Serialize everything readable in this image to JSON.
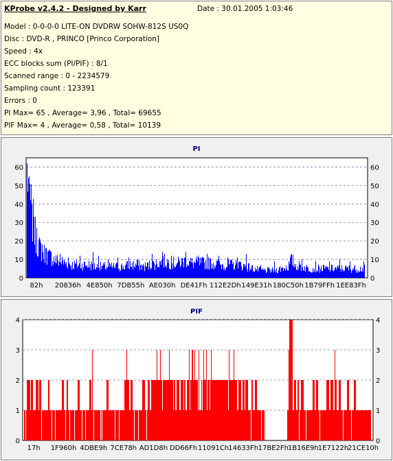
{
  "info": {
    "title": "KProbe v2.4.2 - Designed by Karr",
    "date": "Date : 30.01.2005 1:03:46",
    "lines": [
      "Model : 0-0-0-0 LITE-ON DVDRW SOHW-812S  US0Q",
      "Disc : DVD-R , PRINCO [Princo Corporation]",
      "Speed : 4x",
      "ECC blocks sum (PI/PIF) : 8/1",
      "Scanned range : 0 - 2234579",
      "Sampling count : 123391",
      "Errors : 0",
      "PI Max= 65 , Average= 3,96 , Total= 69655",
      "PIF Max= 4 , Average= 0,58 , Total= 10139"
    ]
  },
  "chart_data": [
    {
      "type": "area",
      "title": "PI",
      "color": "#0000ff",
      "ylim": [
        0,
        65
      ],
      "yticks": [
        0,
        10,
        20,
        30,
        40,
        50,
        60
      ],
      "xticklabels": [
        "82h",
        "20836h",
        "4E850h",
        "7DB55h",
        "AE030h",
        "DE41Fh",
        "112E2Dh",
        "149E31h",
        "180C50h",
        "1B79FFh",
        "1EE83Fh"
      ],
      "grid": true,
      "profile": [
        [
          0,
          55
        ],
        [
          1,
          57
        ],
        [
          2,
          52
        ],
        [
          4,
          44
        ],
        [
          6,
          38
        ],
        [
          8,
          32
        ],
        [
          10,
          27
        ],
        [
          12,
          23
        ],
        [
          15,
          20
        ],
        [
          18,
          17
        ],
        [
          22,
          14
        ],
        [
          26,
          13
        ],
        [
          30,
          12
        ],
        [
          35,
          11
        ],
        [
          40,
          10
        ],
        [
          45,
          9
        ],
        [
          50,
          9
        ],
        [
          55,
          8
        ],
        [
          60,
          8
        ],
        [
          65,
          7
        ],
        [
          70,
          7
        ],
        [
          80,
          7
        ],
        [
          90,
          7
        ],
        [
          100,
          6
        ],
        [
          110,
          6
        ],
        [
          120,
          6
        ],
        [
          130,
          6
        ],
        [
          140,
          6
        ],
        [
          150,
          7
        ],
        [
          160,
          7
        ],
        [
          170,
          6
        ],
        [
          180,
          7
        ],
        [
          190,
          8
        ],
        [
          200,
          9
        ],
        [
          210,
          8
        ],
        [
          220,
          8
        ],
        [
          230,
          9
        ],
        [
          240,
          8
        ],
        [
          250,
          8
        ],
        [
          260,
          8
        ],
        [
          270,
          8
        ],
        [
          280,
          7
        ],
        [
          290,
          7
        ],
        [
          300,
          7
        ],
        [
          310,
          7
        ],
        [
          320,
          6
        ],
        [
          330,
          5
        ],
        [
          340,
          4
        ],
        [
          350,
          4
        ],
        [
          360,
          4
        ],
        [
          370,
          5
        ],
        [
          380,
          6
        ],
        [
          385,
          10
        ],
        [
          390,
          7
        ],
        [
          400,
          6
        ],
        [
          410,
          5
        ],
        [
          420,
          5
        ],
        [
          430,
          5
        ],
        [
          440,
          5
        ],
        [
          450,
          5
        ],
        [
          460,
          5
        ],
        [
          470,
          5
        ],
        [
          480,
          5
        ],
        [
          491,
          5
        ]
      ],
      "peaks": [
        [
          0,
          62
        ],
        [
          3,
          55
        ],
        [
          7,
          40
        ],
        [
          10,
          33
        ],
        [
          14,
          27
        ],
        [
          18,
          22
        ],
        [
          22,
          18
        ],
        [
          28,
          16
        ],
        [
          35,
          14
        ],
        [
          48,
          13
        ],
        [
          60,
          11
        ],
        [
          77,
          12
        ],
        [
          96,
          14
        ],
        [
          104,
          12
        ],
        [
          118,
          10
        ],
        [
          132,
          11
        ],
        [
          148,
          11
        ],
        [
          160,
          10
        ],
        [
          182,
          13
        ],
        [
          197,
          14
        ],
        [
          210,
          12
        ],
        [
          231,
          14
        ],
        [
          249,
          12
        ],
        [
          262,
          13
        ],
        [
          279,
          12
        ],
        [
          292,
          11
        ],
        [
          306,
          11
        ],
        [
          319,
          13
        ],
        [
          340,
          7
        ],
        [
          360,
          9
        ],
        [
          385,
          13
        ],
        [
          400,
          10
        ],
        [
          420,
          9
        ],
        [
          440,
          9
        ],
        [
          455,
          10
        ],
        [
          470,
          9
        ],
        [
          490,
          9
        ]
      ]
    },
    {
      "type": "bar",
      "title": "PIF",
      "color": "#ff0000",
      "ylim": [
        0,
        4
      ],
      "yticks": [
        0,
        1,
        2,
        3,
        4
      ],
      "xticklabels": [
        "17h",
        "1F960h",
        "4DBE9h",
        "7CE78h",
        "AD1D8h",
        "DD66Fh",
        "11091Ch",
        "14633Fh",
        "17BE2Fh",
        "1B16E9h",
        "1E7122h",
        "21CE10h"
      ],
      "grid": true,
      "runs2": [
        [
          4,
          8
        ],
        [
          10,
          12
        ],
        [
          17,
          20
        ],
        [
          22,
          24
        ],
        [
          35,
          36
        ],
        [
          55,
          57
        ],
        [
          62,
          63
        ],
        [
          78,
          80
        ],
        [
          95,
          97
        ],
        [
          120,
          122
        ],
        [
          146,
          148
        ],
        [
          150,
          152
        ],
        [
          155,
          157
        ],
        [
          172,
          175
        ],
        [
          180,
          182
        ],
        [
          185,
          219
        ],
        [
          222,
          225
        ],
        [
          228,
          231
        ],
        [
          233,
          304
        ],
        [
          306,
          309
        ],
        [
          312,
          315
        ],
        [
          318,
          320
        ],
        [
          322,
          325
        ],
        [
          330,
          332
        ],
        [
          336,
          338
        ],
        [
          388,
          390
        ],
        [
          393,
          395
        ],
        [
          398,
          400
        ],
        [
          403,
          406
        ],
        [
          420,
          422
        ],
        [
          425,
          427
        ],
        [
          440,
          443
        ],
        [
          446,
          449
        ],
        [
          452,
          454
        ],
        [
          458,
          460
        ],
        [
          470,
          472
        ],
        [
          480,
          482
        ]
      ],
      "spikes3": [
        99,
        149,
        193,
        198,
        211,
        240,
        244,
        245,
        248,
        254,
        261,
        265,
        272,
        298,
        305,
        385,
        388,
        452
      ],
      "spikes4": [
        386,
        387,
        388,
        389,
        390
      ],
      "zero_runs": [
        [
          350,
          382
        ]
      ],
      "zero_spots": [
        2,
        25,
        40,
        45,
        60,
        66,
        73,
        84,
        89,
        101,
        111,
        113,
        132,
        138,
        160,
        166,
        178,
        330,
        345,
        400,
        410,
        430,
        464,
        476
      ]
    }
  ]
}
